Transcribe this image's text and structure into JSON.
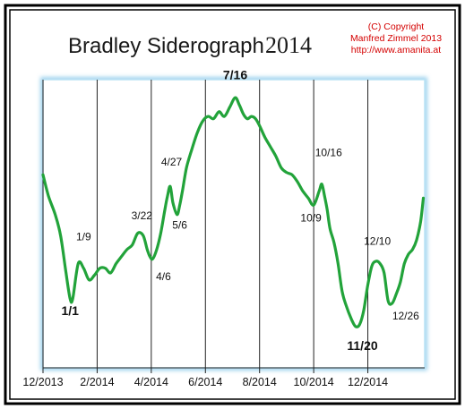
{
  "chart_data": {
    "type": "line",
    "title": "Bradley Siderograph",
    "title_year": "2014",
    "copyright_lines": [
      "(C) Copyright",
      "Manfred Zimmel 2013",
      "http://www.amanita.at"
    ],
    "xlabel": "",
    "ylabel": "",
    "x_ticks": [
      "12/2013",
      "2/2014",
      "4/2014",
      "6/2014",
      "8/2014",
      "10/2014",
      "12/2014"
    ],
    "x_tick_months": [
      0,
      2,
      4,
      6,
      8,
      10,
      12
    ],
    "x_range_months": [
      0,
      14.1
    ],
    "y_range": [
      0,
      100
    ],
    "grid": "vertical",
    "legend": "none",
    "line_color": "#22a33a",
    "series": [
      {
        "x": [
          0,
          0.2,
          0.45,
          0.65,
          0.85,
          1.0,
          1.1,
          1.3,
          1.5,
          1.7,
          1.9,
          2.1,
          2.3,
          2.5,
          2.7,
          2.9,
          3.1,
          3.3,
          3.5,
          3.7,
          3.85,
          3.95,
          4.05,
          4.2,
          4.35,
          4.5,
          4.6,
          4.7,
          4.8,
          4.95,
          5.05,
          5.15,
          5.3,
          5.5,
          5.7,
          5.9,
          6.1,
          6.3,
          6.5,
          6.7,
          6.9,
          7.1,
          7.25,
          7.4,
          7.55,
          7.7,
          7.85,
          8.0,
          8.2,
          8.4,
          8.6,
          8.8,
          9.0,
          9.2,
          9.4,
          9.6,
          9.8,
          10.0,
          10.2,
          10.3,
          10.4,
          10.5,
          10.6,
          10.75,
          10.9,
          11.05,
          11.2,
          11.4,
          11.55,
          11.7,
          11.85,
          12.0,
          12.15,
          12.3,
          12.45,
          12.6,
          12.75,
          12.9,
          13.05,
          13.2,
          13.35,
          13.5,
          13.65,
          13.8,
          13.95,
          14.05
        ],
        "y": [
          70,
          61,
          53,
          44,
          28,
          17,
          17,
          32,
          30,
          25,
          27,
          30,
          30,
          28,
          32,
          35,
          38,
          40,
          45,
          44,
          38,
          35,
          34,
          38,
          45,
          55,
          61,
          65,
          58,
          53,
          57,
          63,
          73,
          81,
          88,
          93,
          95,
          94,
          97,
          95,
          99,
          103,
          100,
          96,
          94,
          95,
          94,
          91,
          86,
          82,
          78,
          73,
          71,
          70,
          67,
          63,
          60,
          57,
          63,
          66,
          61,
          55,
          47,
          41,
          32,
          20,
          14,
          8,
          5,
          6,
          12,
          23,
          31,
          33,
          32,
          28,
          16,
          15,
          19,
          24,
          32,
          36,
          38,
          42,
          50,
          60
        ]
      }
    ],
    "annotations": [
      {
        "text": "1/1",
        "month": 1.0,
        "value": 10,
        "bold": true,
        "size": 14
      },
      {
        "text": "1/9",
        "month": 1.5,
        "value": 42,
        "bold": false,
        "size": 12
      },
      {
        "text": "3/22",
        "month": 3.65,
        "value": 51,
        "bold": false,
        "size": 12
      },
      {
        "text": "4/6",
        "month": 4.45,
        "value": 25,
        "bold": false,
        "size": 12
      },
      {
        "text": "4/27",
        "month": 4.75,
        "value": 74,
        "bold": false,
        "size": 12
      },
      {
        "text": "5/6",
        "month": 5.05,
        "value": 47,
        "bold": false,
        "size": 12
      },
      {
        "text": "7/16",
        "month": 7.1,
        "value": 111,
        "bold": true,
        "size": 14
      },
      {
        "text": "10/9",
        "month": 9.9,
        "value": 50,
        "bold": false,
        "size": 12
      },
      {
        "text": "10/16",
        "month": 10.55,
        "value": 78,
        "bold": false,
        "size": 12
      },
      {
        "text": "11/20",
        "month": 11.8,
        "value": -5,
        "bold": true,
        "size": 14
      },
      {
        "text": "12/10",
        "month": 12.35,
        "value": 40,
        "bold": false,
        "size": 12
      },
      {
        "text": "12/26",
        "month": 13.4,
        "value": 8,
        "bold": false,
        "size": 12
      }
    ]
  }
}
